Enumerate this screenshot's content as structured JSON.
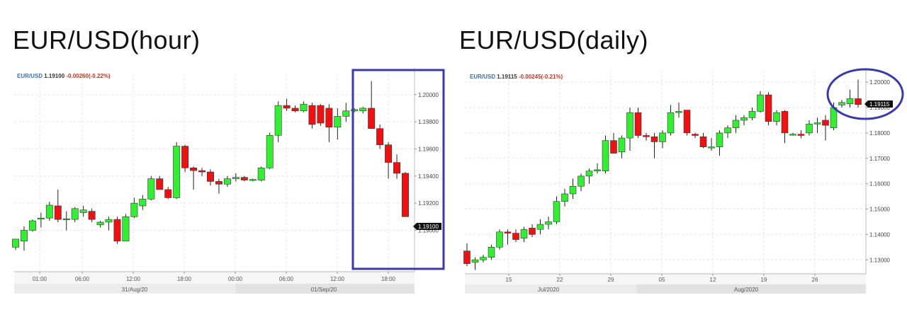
{
  "chart_data": [
    {
      "type": "candlestick",
      "title": "EUR/USD(hour)",
      "symbol": "EUR/USD",
      "last_price": "1.19100",
      "change": "-0.00260(-0.22%)",
      "price_tag": "1.19100",
      "ylim": [
        1.187,
        1.2015
      ],
      "y_ticks": [
        "1.20000",
        "1.19800",
        "1.19600",
        "1.19400",
        "1.19200",
        "1.19000"
      ],
      "x_ticks": [
        "01:00",
        "06:00",
        "12:00",
        "18:00",
        "00:00",
        "06:00",
        "12:00",
        "18:00"
      ],
      "date_labels": [
        "31/Aug/20",
        "01/Sep/20"
      ],
      "candles": [
        {
          "o": 1.18875,
          "h": 1.18935,
          "l": 1.18855,
          "c": 1.18935
        },
        {
          "o": 1.1892,
          "h": 1.1903,
          "l": 1.1885,
          "c": 1.19
        },
        {
          "o": 1.19,
          "h": 1.1908,
          "l": 1.1899,
          "c": 1.1907
        },
        {
          "o": 1.1909,
          "h": 1.1913,
          "l": 1.1902,
          "c": 1.1909
        },
        {
          "o": 1.1909,
          "h": 1.1921,
          "l": 1.1907,
          "c": 1.19185
        },
        {
          "o": 1.1918,
          "h": 1.193,
          "l": 1.1906,
          "c": 1.1908
        },
        {
          "o": 1.1908,
          "h": 1.1914,
          "l": 1.19,
          "c": 1.19085
        },
        {
          "o": 1.1908,
          "h": 1.1917,
          "l": 1.1906,
          "c": 1.1916
        },
        {
          "o": 1.1913,
          "h": 1.1918,
          "l": 1.191,
          "c": 1.1915
        },
        {
          "o": 1.1914,
          "h": 1.1916,
          "l": 1.1906,
          "c": 1.1908
        },
        {
          "o": 1.1904,
          "h": 1.1907,
          "l": 1.1902,
          "c": 1.1906
        },
        {
          "o": 1.1906,
          "h": 1.191,
          "l": 1.19,
          "c": 1.1908
        },
        {
          "o": 1.1908,
          "h": 1.191,
          "l": 1.189,
          "c": 1.1892
        },
        {
          "o": 1.1892,
          "h": 1.1912,
          "l": 1.1892,
          "c": 1.191
        },
        {
          "o": 1.191,
          "h": 1.1924,
          "l": 1.1909,
          "c": 1.192
        },
        {
          "o": 1.1918,
          "h": 1.1926,
          "l": 1.1915,
          "c": 1.1923
        },
        {
          "o": 1.1923,
          "h": 1.194,
          "l": 1.1922,
          "c": 1.1938
        },
        {
          "o": 1.1938,
          "h": 1.194,
          "l": 1.1931,
          "c": 1.193
        },
        {
          "o": 1.193,
          "h": 1.1932,
          "l": 1.1923,
          "c": 1.1924
        },
        {
          "o": 1.1924,
          "h": 1.1965,
          "l": 1.1923,
          "c": 1.1962
        },
        {
          "o": 1.1962,
          "h": 1.1963,
          "l": 1.1943,
          "c": 1.1946
        },
        {
          "o": 1.1946,
          "h": 1.1947,
          "l": 1.193,
          "c": 1.1944
        },
        {
          "o": 1.1944,
          "h": 1.1946,
          "l": 1.194,
          "c": 1.1943
        },
        {
          "o": 1.1943,
          "h": 1.1945,
          "l": 1.1933,
          "c": 1.1936
        },
        {
          "o": 1.1936,
          "h": 1.1938,
          "l": 1.1927,
          "c": 1.1934
        },
        {
          "o": 1.1934,
          "h": 1.194,
          "l": 1.1932,
          "c": 1.1938
        },
        {
          "o": 1.1938,
          "h": 1.1942,
          "l": 1.1936,
          "c": 1.1939
        },
        {
          "o": 1.1939,
          "h": 1.194,
          "l": 1.1936,
          "c": 1.1937
        },
        {
          "o": 1.1937,
          "h": 1.1938,
          "l": 1.1936,
          "c": 1.19375
        },
        {
          "o": 1.1937,
          "h": 1.1947,
          "l": 1.1936,
          "c": 1.1946
        },
        {
          "o": 1.1946,
          "h": 1.1972,
          "l": 1.1945,
          "c": 1.197
        },
        {
          "o": 1.197,
          "h": 1.1995,
          "l": 1.1965,
          "c": 1.1992
        },
        {
          "o": 1.1992,
          "h": 1.1997,
          "l": 1.1988,
          "c": 1.199
        },
        {
          "o": 1.199,
          "h": 1.1992,
          "l": 1.1987,
          "c": 1.1988
        },
        {
          "o": 1.1988,
          "h": 1.1995,
          "l": 1.1987,
          "c": 1.1993
        },
        {
          "o": 1.1992,
          "h": 1.1994,
          "l": 1.1975,
          "c": 1.1978
        },
        {
          "o": 1.1992,
          "h": 1.1993,
          "l": 1.1977,
          "c": 1.1979
        },
        {
          "o": 1.199,
          "h": 1.1993,
          "l": 1.1965,
          "c": 1.1976
        },
        {
          "o": 1.1976,
          "h": 1.199,
          "l": 1.1967,
          "c": 1.1984
        },
        {
          "o": 1.1984,
          "h": 1.1994,
          "l": 1.198,
          "c": 1.1988
        },
        {
          "o": 1.1988,
          "h": 1.199,
          "l": 1.1987,
          "c": 1.1989
        },
        {
          "o": 1.1988,
          "h": 1.1991,
          "l": 1.1986,
          "c": 1.199
        },
        {
          "o": 1.199,
          "h": 1.201,
          "l": 1.1976,
          "c": 1.1975
        },
        {
          "o": 1.1975,
          "h": 1.1978,
          "l": 1.196,
          "c": 1.1963
        },
        {
          "o": 1.1963,
          "h": 1.1965,
          "l": 1.1938,
          "c": 1.195
        },
        {
          "o": 1.195,
          "h": 1.1956,
          "l": 1.1938,
          "c": 1.1942
        },
        {
          "o": 1.1942,
          "h": 1.1943,
          "l": 1.191,
          "c": 1.191
        }
      ]
    },
    {
      "type": "candlestick",
      "title": "EUR/USD(daily)",
      "symbol": "EUR/USD",
      "last_price": "1.19115",
      "change": "-0.00245(-0.21%)",
      "price_tag": "1.19115",
      "ylim": [
        1.1245,
        1.2045
      ],
      "y_ticks": [
        "1.20000",
        "1.19000",
        "1.18000",
        "1.17000",
        "1.16000",
        "1.15000",
        "1.14000",
        "1.13000"
      ],
      "x_ticks": [
        "15",
        "22",
        "29",
        "05",
        "12",
        "19",
        "26"
      ],
      "date_labels": [
        "Jul/2020",
        "Aug/2020"
      ],
      "candles": [
        {
          "o": 1.1335,
          "h": 1.1365,
          "l": 1.1275,
          "c": 1.1285
        },
        {
          "o": 1.129,
          "h": 1.131,
          "l": 1.126,
          "c": 1.13
        },
        {
          "o": 1.13,
          "h": 1.132,
          "l": 1.129,
          "c": 1.131
        },
        {
          "o": 1.131,
          "h": 1.136,
          "l": 1.13,
          "c": 1.135
        },
        {
          "o": 1.135,
          "h": 1.142,
          "l": 1.134,
          "c": 1.141
        },
        {
          "o": 1.141,
          "h": 1.142,
          "l": 1.136,
          "c": 1.1405
        },
        {
          "o": 1.1405,
          "h": 1.142,
          "l": 1.137,
          "c": 1.138
        },
        {
          "o": 1.1385,
          "h": 1.143,
          "l": 1.137,
          "c": 1.142
        },
        {
          "o": 1.1425,
          "h": 1.144,
          "l": 1.139,
          "c": 1.14
        },
        {
          "o": 1.142,
          "h": 1.146,
          "l": 1.14,
          "c": 1.144
        },
        {
          "o": 1.144,
          "h": 1.147,
          "l": 1.142,
          "c": 1.145
        },
        {
          "o": 1.145,
          "h": 1.155,
          "l": 1.144,
          "c": 1.153
        },
        {
          "o": 1.153,
          "h": 1.158,
          "l": 1.151,
          "c": 1.156
        },
        {
          "o": 1.156,
          "h": 1.162,
          "l": 1.154,
          "c": 1.159
        },
        {
          "o": 1.159,
          "h": 1.164,
          "l": 1.157,
          "c": 1.163
        },
        {
          "o": 1.163,
          "h": 1.166,
          "l": 1.16,
          "c": 1.165
        },
        {
          "o": 1.165,
          "h": 1.168,
          "l": 1.164,
          "c": 1.1655
        },
        {
          "o": 1.165,
          "h": 1.179,
          "l": 1.164,
          "c": 1.177
        },
        {
          "o": 1.177,
          "h": 1.18,
          "l": 1.172,
          "c": 1.172
        },
        {
          "o": 1.1725,
          "h": 1.179,
          "l": 1.17,
          "c": 1.178
        },
        {
          "o": 1.178,
          "h": 1.19,
          "l": 1.173,
          "c": 1.188
        },
        {
          "o": 1.188,
          "h": 1.19,
          "l": 1.178,
          "c": 1.179
        },
        {
          "o": 1.179,
          "h": 1.18,
          "l": 1.177,
          "c": 1.1785
        },
        {
          "o": 1.1785,
          "h": 1.18,
          "l": 1.17,
          "c": 1.1765
        },
        {
          "o": 1.1765,
          "h": 1.181,
          "l": 1.174,
          "c": 1.18
        },
        {
          "o": 1.18,
          "h": 1.191,
          "l": 1.179,
          "c": 1.188
        },
        {
          "o": 1.188,
          "h": 1.192,
          "l": 1.186,
          "c": 1.1885
        },
        {
          "o": 1.189,
          "h": 1.189,
          "l": 1.179,
          "c": 1.18
        },
        {
          "o": 1.1795,
          "h": 1.18,
          "l": 1.178,
          "c": 1.179
        },
        {
          "o": 1.1785,
          "h": 1.18,
          "l": 1.174,
          "c": 1.1745
        },
        {
          "o": 1.1745,
          "h": 1.178,
          "l": 1.173,
          "c": 1.1745
        },
        {
          "o": 1.1745,
          "h": 1.181,
          "l": 1.171,
          "c": 1.18
        },
        {
          "o": 1.18,
          "h": 1.183,
          "l": 1.178,
          "c": 1.182
        },
        {
          "o": 1.182,
          "h": 1.187,
          "l": 1.18,
          "c": 1.185
        },
        {
          "o": 1.185,
          "h": 1.187,
          "l": 1.183,
          "c": 1.186
        },
        {
          "o": 1.186,
          "h": 1.19,
          "l": 1.185,
          "c": 1.1885
        },
        {
          "o": 1.1885,
          "h": 1.1965,
          "l": 1.188,
          "c": 1.195
        },
        {
          "o": 1.195,
          "h": 1.196,
          "l": 1.183,
          "c": 1.1845
        },
        {
          "o": 1.1845,
          "h": 1.189,
          "l": 1.183,
          "c": 1.188
        },
        {
          "o": 1.1885,
          "h": 1.189,
          "l": 1.176,
          "c": 1.18
        },
        {
          "o": 1.1795,
          "h": 1.18,
          "l": 1.179,
          "c": 1.1795
        },
        {
          "o": 1.1795,
          "h": 1.181,
          "l": 1.178,
          "c": 1.179
        },
        {
          "o": 1.18,
          "h": 1.185,
          "l": 1.179,
          "c": 1.1835
        },
        {
          "o": 1.1835,
          "h": 1.186,
          "l": 1.18,
          "c": 1.184
        },
        {
          "o": 1.185,
          "h": 1.187,
          "l": 1.177,
          "c": 1.183
        },
        {
          "o": 1.182,
          "h": 1.192,
          "l": 1.181,
          "c": 1.19
        },
        {
          "o": 1.191,
          "h": 1.193,
          "l": 1.19,
          "c": 1.192
        },
        {
          "o": 1.1915,
          "h": 1.197,
          "l": 1.19,
          "c": 1.1935
        },
        {
          "o": 1.1935,
          "h": 1.201,
          "l": 1.19,
          "c": 1.1912
        }
      ]
    }
  ],
  "colors": {
    "up": "#33ee33",
    "down": "#ee1111",
    "annotation": "#3a3aaa",
    "symbol": "#3b6fb6",
    "change": "#cc3322",
    "grid": "#e6e6e6",
    "axis_strip": "#ececec"
  }
}
